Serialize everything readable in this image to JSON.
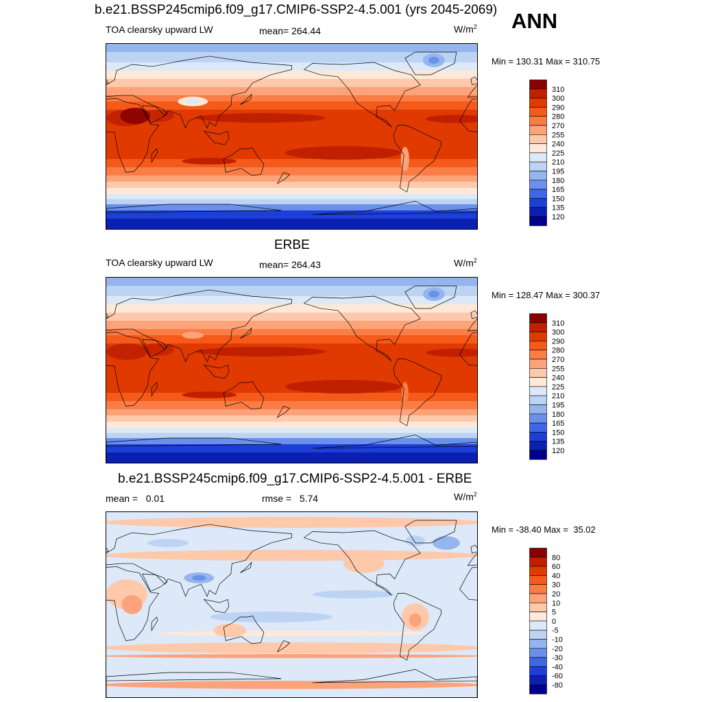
{
  "title": "b.e21.BSSP245cmip6.f09_g17.CMIP6-SSP2-4.5.001 (yrs 2045-2069)",
  "season": "ANN",
  "units_base": "W/m",
  "units_exp": "2",
  "panels": [
    {
      "id": "model",
      "heading": "",
      "left_label": "TOA clearsky upward LW",
      "center_label": "mean= 264.44",
      "minmax": "Min = 130.31 Max = 310.75",
      "colorbar": {
        "labels": [
          "310",
          "300",
          "290",
          "280",
          "270",
          "255",
          "240",
          "225",
          "210",
          "195",
          "180",
          "165",
          "150",
          "135",
          "120"
        ],
        "colors": [
          "#8a0000",
          "#c02000",
          "#e03a00",
          "#f55a1a",
          "#f97d45",
          "#fca37a",
          "#fdc9aa",
          "#fee9d8",
          "#dde9f8",
          "#bcd3f3",
          "#94b5ee",
          "#6a90ea",
          "#3f66e6",
          "#1d3fd8",
          "#0a20b0",
          "#00008a"
        ]
      },
      "map_style": "absolute"
    },
    {
      "id": "obs",
      "heading": "ERBE",
      "left_label": "TOA clearsky upward LW",
      "center_label": "mean= 264.43",
      "minmax": "Min = 128.47 Max = 300.37",
      "colorbar": {
        "labels": [
          "310",
          "300",
          "290",
          "280",
          "270",
          "255",
          "240",
          "225",
          "210",
          "195",
          "180",
          "165",
          "150",
          "135",
          "120"
        ],
        "colors": [
          "#8a0000",
          "#c02000",
          "#e03a00",
          "#f55a1a",
          "#f97d45",
          "#fca37a",
          "#fdc9aa",
          "#fee9d8",
          "#dde9f8",
          "#bcd3f3",
          "#94b5ee",
          "#6a90ea",
          "#3f66e6",
          "#1d3fd8",
          "#0a20b0",
          "#00008a"
        ]
      },
      "map_style": "absolute"
    },
    {
      "id": "diff",
      "heading": "b.e21.BSSP245cmip6.f09_g17.CMIP6-SSP2-4.5.001 - ERBE",
      "left_label": "mean =   0.01",
      "center_label": "rmse =   5.74",
      "minmax": "Min = -38.40 Max =  35.02",
      "colorbar": {
        "labels": [
          "80",
          "60",
          "40",
          "30",
          "20",
          "10",
          "5",
          "0",
          "-5",
          "-10",
          "-20",
          "-30",
          "-40",
          "-60",
          "-80"
        ],
        "colors": [
          "#8a0000",
          "#c02000",
          "#e03a00",
          "#f55a1a",
          "#f97d45",
          "#fca37a",
          "#fdc9aa",
          "#fee9d8",
          "#dde9f8",
          "#bcd3f3",
          "#94b5ee",
          "#6a90ea",
          "#3f66e6",
          "#1d3fd8",
          "#0a20b0",
          "#00008a"
        ]
      },
      "map_style": "difference"
    }
  ],
  "chart_data": [
    {
      "type": "heatmap",
      "title": "b.e21.BSSP245cmip6.f09_g17.CMIP6-SSP2-4.5.001 (yrs 2045-2069)",
      "variable": "TOA clearsky upward LW",
      "mean": 264.44,
      "min": 130.31,
      "max": 310.75,
      "contour_levels": [
        120,
        135,
        150,
        165,
        180,
        195,
        210,
        225,
        240,
        255,
        270,
        280,
        290,
        300,
        310
      ]
    },
    {
      "type": "heatmap",
      "title": "ERBE",
      "variable": "TOA clearsky upward LW",
      "mean": 264.43,
      "min": 128.47,
      "max": 300.37,
      "contour_levels": [
        120,
        135,
        150,
        165,
        180,
        195,
        210,
        225,
        240,
        255,
        270,
        280,
        290,
        300,
        310
      ]
    },
    {
      "type": "heatmap",
      "title": "b.e21.BSSP245cmip6.f09_g17.CMIP6-SSP2-4.5.001 - ERBE",
      "mean": 0.01,
      "rmse": 5.74,
      "min": -38.4,
      "max": 35.02,
      "contour_levels": [
        -80,
        -60,
        -40,
        -30,
        -20,
        -10,
        -5,
        0,
        5,
        10,
        20,
        30,
        40,
        60,
        80
      ]
    }
  ]
}
